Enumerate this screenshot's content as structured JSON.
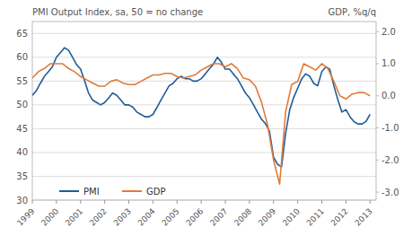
{
  "chart_data": {
    "type": "line",
    "ylabel": "PMI Output Index, sa, 50 = no change",
    "y2label": "GDP, %q/q",
    "xlim": [
      1999.0,
      2013.25
    ],
    "xticks": [
      1999,
      2000,
      2001,
      2002,
      2003,
      2004,
      2005,
      2006,
      2007,
      2008,
      2009,
      2010,
      2011,
      2012,
      2013
    ],
    "ylim": [
      30,
      67.5
    ],
    "yticks": [
      30,
      35,
      40,
      45,
      50,
      55,
      60,
      65
    ],
    "y2lim": [
      -3.25,
      2.3125
    ],
    "y2ticks": [
      {
        "value": -3.0,
        "label": "-3.0"
      },
      {
        "value": -2.0,
        "label": "-2.0"
      },
      {
        "value": -1.0,
        "label": "-1.0"
      },
      {
        "value": 0.0,
        "label": "0.0"
      },
      {
        "value": 1.0,
        "label": "1.0"
      },
      {
        "value": 2.0,
        "label": "2.0"
      }
    ],
    "grid": true,
    "legend": "lower left",
    "series": [
      {
        "name": "PMI",
        "color": "#1f5c99",
        "x": [
          1999.0,
          1999.17,
          1999.33,
          1999.5,
          1999.67,
          1999.83,
          2000.0,
          2000.17,
          2000.33,
          2000.5,
          2000.67,
          2000.83,
          2001.0,
          2001.17,
          2001.33,
          2001.5,
          2001.67,
          2001.83,
          2002.0,
          2002.17,
          2002.33,
          2002.5,
          2002.67,
          2002.83,
          2003.0,
          2003.17,
          2003.33,
          2003.5,
          2003.67,
          2003.83,
          2004.0,
          2004.17,
          2004.33,
          2004.5,
          2004.67,
          2004.83,
          2005.0,
          2005.17,
          2005.33,
          2005.5,
          2005.67,
          2005.83,
          2006.0,
          2006.17,
          2006.33,
          2006.5,
          2006.67,
          2006.83,
          2007.0,
          2007.17,
          2007.33,
          2007.5,
          2007.67,
          2007.83,
          2008.0,
          2008.17,
          2008.33,
          2008.5,
          2008.67,
          2008.83,
          2009.0,
          2009.17,
          2009.33,
          2009.5,
          2009.67,
          2009.83,
          2010.0,
          2010.17,
          2010.33,
          2010.5,
          2010.67,
          2010.83,
          2011.0,
          2011.17,
          2011.33,
          2011.5,
          2011.67,
          2011.83,
          2012.0,
          2012.17,
          2012.33,
          2012.5,
          2012.67,
          2012.83,
          2013.0
        ],
        "values": [
          52.0,
          53.0,
          54.5,
          56.0,
          57.0,
          58.0,
          60.0,
          61.0,
          62.0,
          61.5,
          60.0,
          58.5,
          57.5,
          55.0,
          52.5,
          51.0,
          50.5,
          50.0,
          50.5,
          51.5,
          52.5,
          52.0,
          51.0,
          50.0,
          50.0,
          49.5,
          48.5,
          48.0,
          47.5,
          47.5,
          48.0,
          49.5,
          51.0,
          52.5,
          54.0,
          54.5,
          55.5,
          56.0,
          55.5,
          55.5,
          55.0,
          55.0,
          55.5,
          56.5,
          57.5,
          58.5,
          60.0,
          59.0,
          57.5,
          57.5,
          56.5,
          55.5,
          54.0,
          52.5,
          51.5,
          50.0,
          48.5,
          47.0,
          46.0,
          44.5,
          39.0,
          37.5,
          37.0,
          44.0,
          49.0,
          51.5,
          53.5,
          55.5,
          56.5,
          56.0,
          54.5,
          54.0,
          57.0,
          58.0,
          57.5,
          54.0,
          51.0,
          48.5,
          49.0,
          47.5,
          46.5,
          46.0,
          46.0,
          46.5,
          48.0
        ]
      },
      {
        "name": "GDP",
        "color": "#e07b39",
        "axis": "y2",
        "x": [
          1999.0,
          1999.25,
          1999.5,
          1999.75,
          2000.0,
          2000.25,
          2000.5,
          2000.75,
          2001.0,
          2001.25,
          2001.5,
          2001.75,
          2002.0,
          2002.25,
          2002.5,
          2002.75,
          2003.0,
          2003.25,
          2003.5,
          2003.75,
          2004.0,
          2004.25,
          2004.5,
          2004.75,
          2005.0,
          2005.25,
          2005.5,
          2005.75,
          2006.0,
          2006.25,
          2006.5,
          2006.75,
          2007.0,
          2007.25,
          2007.5,
          2007.75,
          2008.0,
          2008.25,
          2008.5,
          2008.75,
          2009.0,
          2009.25,
          2009.5,
          2009.75,
          2010.0,
          2010.25,
          2010.5,
          2010.75,
          2011.0,
          2011.25,
          2011.5,
          2011.75,
          2012.0,
          2012.25,
          2012.5,
          2012.75,
          2013.0
        ],
        "values": [
          0.55,
          0.75,
          0.85,
          1.0,
          1.0,
          1.0,
          0.85,
          0.75,
          0.6,
          0.5,
          0.4,
          0.3,
          0.3,
          0.45,
          0.5,
          0.4,
          0.35,
          0.35,
          0.45,
          0.55,
          0.65,
          0.65,
          0.7,
          0.7,
          0.6,
          0.55,
          0.6,
          0.65,
          0.8,
          0.9,
          1.0,
          1.0,
          0.9,
          1.0,
          0.85,
          0.55,
          0.5,
          0.3,
          -0.2,
          -0.9,
          -2.0,
          -2.75,
          -0.5,
          0.35,
          0.45,
          1.0,
          0.9,
          0.8,
          1.0,
          0.85,
          0.45,
          0.0,
          -0.1,
          0.05,
          0.1,
          0.1,
          0.0
        ]
      }
    ]
  }
}
